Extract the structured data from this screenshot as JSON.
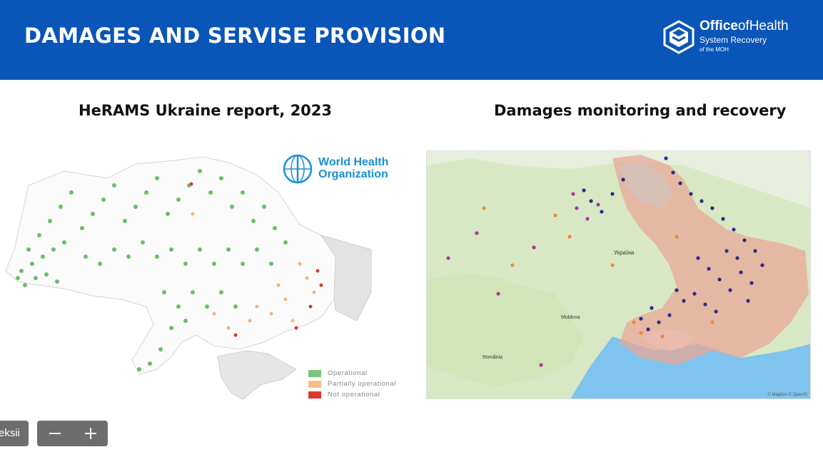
{
  "header": {
    "title": "DAMAGES AND SERVISE PROVISION",
    "brand": {
      "name_bold": "Office",
      "name_rest": "ofHealth",
      "line2": "System Recovery",
      "line3": "of the MOH"
    },
    "bg_color": "#0a55b8"
  },
  "left_panel": {
    "title": "HeRAMS Ukraine report, 2023",
    "who_logo": {
      "line1": "World Health",
      "line2": "Organization"
    },
    "legend": [
      {
        "label": "Operational",
        "color": "#7bc47c"
      },
      {
        "label": "Partially operational",
        "color": "#f6bf8a"
      },
      {
        "label": "Not operational",
        "color": "#d9392e"
      }
    ]
  },
  "right_panel": {
    "title": "Damages monitoring and recovery",
    "map_labels": {
      "ukraine": "Україна",
      "moldova": "Moldova",
      "romania": "România"
    },
    "attribution": "© Mapbox © OpenSt"
  },
  "controls": {
    "pill_text": "eksii",
    "zoom_out": "minus-icon",
    "zoom_in": "plus-icon"
  }
}
